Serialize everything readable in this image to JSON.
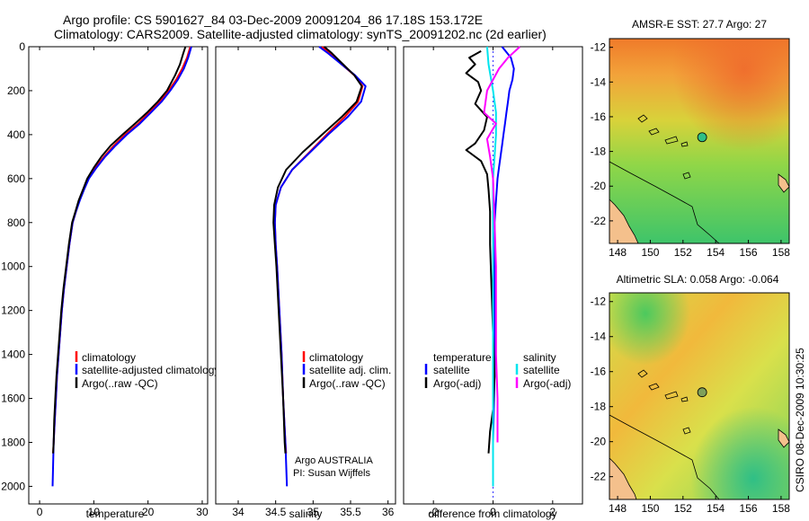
{
  "header": {
    "line1": "Argo profile: CS 5901627_84 03-Dec-2009 20091204_86 17.18S 153.172E",
    "line2": "Climatology: CARS2009. Satellite-adjusted climatology: synTS_20091202.nc (2d earlier)"
  },
  "side_label": "CSIRO 08-Dec-2009 10:30:25",
  "colors": {
    "climatology": "#ff0000",
    "satellite": "#0000ff",
    "argo": "#000000",
    "argo_adj": "#ff00ff",
    "sat_diff_sal": "#00e5ee"
  },
  "chart_data": [
    {
      "type": "line",
      "id": "temperature",
      "xlabel": "temperature",
      "ylabel": "",
      "y_reversed": true,
      "xlim": [
        -2,
        31
      ],
      "ylim": [
        0,
        2080
      ],
      "xticks": [
        0,
        10,
        20,
        30
      ],
      "yticks": [
        0,
        200,
        400,
        600,
        800,
        1000,
        1200,
        1400,
        1600,
        1800,
        2000
      ],
      "legend": [
        "climatology",
        "satellite-adjusted climatology",
        "Argo(..raw -QC)"
      ],
      "series": [
        {
          "name": "climatology",
          "color": "#ff0000",
          "points": [
            [
              27.8,
              0
            ],
            [
              27.2,
              50
            ],
            [
              26.3,
              100
            ],
            [
              25.2,
              150
            ],
            [
              23.8,
              200
            ],
            [
              22.2,
              250
            ],
            [
              20.2,
              300
            ],
            [
              18.2,
              350
            ],
            [
              15.8,
              400
            ],
            [
              13.7,
              450
            ],
            [
              11.9,
              500
            ],
            [
              10.3,
              550
            ],
            [
              9.0,
              600
            ],
            [
              8.1,
              650
            ],
            [
              7.3,
              700
            ],
            [
              6.7,
              750
            ],
            [
              6.1,
              800
            ],
            [
              5.5,
              900
            ],
            [
              5.0,
              1000
            ],
            [
              4.5,
              1100
            ],
            [
              4.1,
              1200
            ],
            [
              3.8,
              1300
            ],
            [
              3.5,
              1400
            ],
            [
              3.2,
              1500
            ],
            [
              3.0,
              1600
            ],
            [
              2.8,
              1700
            ],
            [
              2.6,
              1800
            ],
            [
              2.5,
              1850
            ]
          ]
        },
        {
          "name": "satellite-adjusted climatology",
          "color": "#0000ff",
          "points": [
            [
              28.0,
              0
            ],
            [
              27.4,
              50
            ],
            [
              26.6,
              100
            ],
            [
              25.5,
              150
            ],
            [
              24.1,
              200
            ],
            [
              22.5,
              250
            ],
            [
              20.5,
              300
            ],
            [
              18.5,
              350
            ],
            [
              16.1,
              400
            ],
            [
              14.0,
              450
            ],
            [
              12.1,
              500
            ],
            [
              10.5,
              550
            ],
            [
              9.1,
              600
            ],
            [
              8.2,
              650
            ],
            [
              7.4,
              700
            ],
            [
              6.7,
              750
            ],
            [
              6.1,
              800
            ],
            [
              5.5,
              900
            ],
            [
              5.0,
              1000
            ],
            [
              4.5,
              1100
            ],
            [
              4.1,
              1200
            ],
            [
              3.8,
              1300
            ],
            [
              3.5,
              1400
            ],
            [
              3.2,
              1500
            ],
            [
              3.0,
              1600
            ],
            [
              2.8,
              1700
            ],
            [
              2.6,
              1800
            ],
            [
              2.5,
              1900
            ],
            [
              2.4,
              2000
            ]
          ]
        },
        {
          "name": "Argo(..raw -QC)",
          "color": "#000000",
          "points": [
            [
              26.9,
              0
            ],
            [
              26.5,
              30
            ],
            [
              25.9,
              80
            ],
            [
              25.0,
              130
            ],
            [
              23.5,
              200
            ],
            [
              21.8,
              250
            ],
            [
              19.8,
              300
            ],
            [
              17.6,
              350
            ],
            [
              15.3,
              400
            ],
            [
              13.1,
              450
            ],
            [
              11.4,
              500
            ],
            [
              10.0,
              550
            ],
            [
              8.8,
              600
            ],
            [
              8.0,
              650
            ],
            [
              7.2,
              700
            ],
            [
              6.6,
              750
            ],
            [
              6.0,
              800
            ],
            [
              5.4,
              900
            ],
            [
              4.9,
              1000
            ],
            [
              4.4,
              1100
            ],
            [
              4.0,
              1200
            ],
            [
              3.7,
              1300
            ],
            [
              3.4,
              1400
            ],
            [
              3.1,
              1500
            ],
            [
              2.9,
              1600
            ],
            [
              2.7,
              1700
            ],
            [
              2.6,
              1800
            ],
            [
              2.5,
              1850
            ]
          ]
        }
      ]
    },
    {
      "type": "line",
      "id": "salinity",
      "xlabel": "salinity",
      "ylabel": "",
      "y_reversed": true,
      "xlim": [
        33.7,
        36.1
      ],
      "ylim": [
        0,
        2080
      ],
      "xticks": [
        34,
        34.5,
        35,
        35.5,
        36
      ],
      "legend": [
        "climatology",
        "satellite adj. clim.",
        "Argo(..raw -QC)"
      ],
      "series": [
        {
          "name": "climatology",
          "color": "#ff0000",
          "points": [
            [
              35.12,
              0
            ],
            [
              35.22,
              30
            ],
            [
              35.38,
              80
            ],
            [
              35.55,
              130
            ],
            [
              35.66,
              180
            ],
            [
              35.6,
              250
            ],
            [
              35.42,
              320
            ],
            [
              35.18,
              400
            ],
            [
              34.95,
              480
            ],
            [
              34.72,
              560
            ],
            [
              34.57,
              640
            ],
            [
              34.5,
              720
            ],
            [
              34.49,
              800
            ],
            [
              34.5,
              900
            ],
            [
              34.52,
              1000
            ],
            [
              34.55,
              1200
            ],
            [
              34.58,
              1400
            ],
            [
              34.6,
              1600
            ],
            [
              34.63,
              1800
            ],
            [
              34.64,
              1850
            ]
          ]
        },
        {
          "name": "satellite adj. clim.",
          "color": "#0000ff",
          "points": [
            [
              35.08,
              0
            ],
            [
              35.2,
              30
            ],
            [
              35.38,
              80
            ],
            [
              35.56,
              130
            ],
            [
              35.7,
              180
            ],
            [
              35.64,
              250
            ],
            [
              35.46,
              320
            ],
            [
              35.2,
              400
            ],
            [
              34.96,
              480
            ],
            [
              34.72,
              560
            ],
            [
              34.57,
              640
            ],
            [
              34.5,
              720
            ],
            [
              34.49,
              800
            ],
            [
              34.5,
              900
            ],
            [
              34.52,
              1000
            ],
            [
              34.55,
              1200
            ],
            [
              34.58,
              1400
            ],
            [
              34.6,
              1600
            ],
            [
              34.63,
              1800
            ],
            [
              34.65,
              2000
            ]
          ]
        },
        {
          "name": "Argo(..raw -QC)",
          "color": "#000000",
          "points": [
            [
              35.15,
              0
            ],
            [
              35.25,
              30
            ],
            [
              35.4,
              80
            ],
            [
              35.55,
              130
            ],
            [
              35.65,
              180
            ],
            [
              35.58,
              250
            ],
            [
              35.38,
              320
            ],
            [
              35.12,
              400
            ],
            [
              34.86,
              480
            ],
            [
              34.64,
              560
            ],
            [
              34.53,
              640
            ],
            [
              34.48,
              720
            ],
            [
              34.47,
              800
            ],
            [
              34.49,
              900
            ],
            [
              34.51,
              1000
            ],
            [
              34.54,
              1200
            ],
            [
              34.57,
              1400
            ],
            [
              34.6,
              1600
            ],
            [
              34.62,
              1800
            ],
            [
              34.63,
              1850
            ]
          ]
        }
      ],
      "annotations": [
        "Argo AUSTRALIA",
        "PI: Susan Wijffels"
      ]
    },
    {
      "type": "line",
      "id": "difference",
      "xlabel": "difference from climatology",
      "ylabel": "",
      "y_reversed": true,
      "xlim": [
        -3,
        3
      ],
      "ylim": [
        0,
        2080
      ],
      "xticks": [
        -2,
        0,
        2
      ],
      "legend_headers": [
        "temperature",
        "salinity"
      ],
      "legend": [
        "satellite",
        "Argo(-adj)",
        "satellite",
        "Argo(-adj)"
      ],
      "series": [
        {
          "name": "temperature satellite",
          "color": "#0000ff",
          "points": [
            [
              0.3,
              0
            ],
            [
              0.6,
              50
            ],
            [
              0.7,
              100
            ],
            [
              0.65,
              150
            ],
            [
              0.55,
              200
            ],
            [
              0.5,
              250
            ],
            [
              0.45,
              300
            ],
            [
              0.4,
              350
            ],
            [
              0.35,
              400
            ],
            [
              0.3,
              450
            ],
            [
              0.25,
              500
            ],
            [
              0.2,
              550
            ],
            [
              0.15,
              600
            ],
            [
              0.1,
              700
            ],
            [
              0.05,
              800
            ],
            [
              0.05,
              1000
            ],
            [
              0.05,
              1500
            ],
            [
              0.0,
              1800
            ],
            [
              0.0,
              2000
            ]
          ]
        },
        {
          "name": "temperature Argo(-adj)",
          "color": "#000000",
          "points": [
            [
              -0.4,
              20
            ],
            [
              -0.8,
              50
            ],
            [
              -0.6,
              80
            ],
            [
              -0.9,
              120
            ],
            [
              -0.5,
              160
            ],
            [
              -0.4,
              200
            ],
            [
              -0.6,
              260
            ],
            [
              -0.2,
              320
            ],
            [
              -0.3,
              380
            ],
            [
              -0.6,
              440
            ],
            [
              -0.9,
              470
            ],
            [
              -0.4,
              520
            ],
            [
              -0.2,
              580
            ],
            [
              -0.15,
              650
            ],
            [
              -0.1,
              750
            ],
            [
              -0.1,
              900
            ],
            [
              -0.05,
              1100
            ],
            [
              0.0,
              1300
            ],
            [
              0.05,
              1500
            ],
            [
              0.0,
              1650
            ],
            [
              -0.1,
              1750
            ],
            [
              -0.15,
              1850
            ]
          ]
        },
        {
          "name": "salinity satellite",
          "color": "#00e5ee",
          "points": [
            [
              -0.2,
              0
            ],
            [
              -0.15,
              80
            ],
            [
              0.0,
              200
            ],
            [
              0.1,
              300
            ],
            [
              0.1,
              400
            ],
            [
              0.05,
              500
            ],
            [
              0.0,
              600
            ],
            [
              0.0,
              800
            ],
            [
              0.0,
              1200
            ],
            [
              0.0,
              1600
            ],
            [
              0.0,
              2000
            ]
          ]
        },
        {
          "name": "salinity Argo(-adj)",
          "color": "#ff00ff",
          "points": [
            [
              0.9,
              0
            ],
            [
              0.5,
              50
            ],
            [
              0.2,
              100
            ],
            [
              -0.2,
              200
            ],
            [
              -0.3,
              300
            ],
            [
              0.1,
              350
            ],
            [
              -0.2,
              420
            ],
            [
              -0.1,
              500
            ],
            [
              0.0,
              600
            ],
            [
              0.05,
              800
            ],
            [
              0.1,
              1000
            ],
            [
              0.1,
              1200
            ],
            [
              0.1,
              1400
            ],
            [
              0.15,
              1600
            ],
            [
              0.15,
              1800
            ]
          ]
        }
      ]
    },
    {
      "type": "heatmap",
      "id": "sst_map",
      "title": "AMSR-E SST: 27.7 Argo: 27",
      "xlim": [
        147.5,
        158.5
      ],
      "ylim": [
        -23.3,
        -11.5
      ],
      "xticks": [
        148,
        150,
        152,
        154,
        156,
        158
      ],
      "yticks": [
        -12,
        -14,
        -16,
        -18,
        -20,
        -22
      ],
      "profile_location": [
        153.172,
        -17.18
      ]
    },
    {
      "type": "heatmap",
      "id": "sla_map",
      "title": "Altimetric SLA: 0.058 Argo: -0.064",
      "xlim": [
        147.5,
        158.5
      ],
      "ylim": [
        -23.3,
        -11.5
      ],
      "xticks": [
        148,
        150,
        152,
        154,
        156,
        158
      ],
      "yticks": [
        -12,
        -14,
        -16,
        -18,
        -20,
        -22
      ],
      "profile_location": [
        153.172,
        -17.18
      ]
    }
  ]
}
